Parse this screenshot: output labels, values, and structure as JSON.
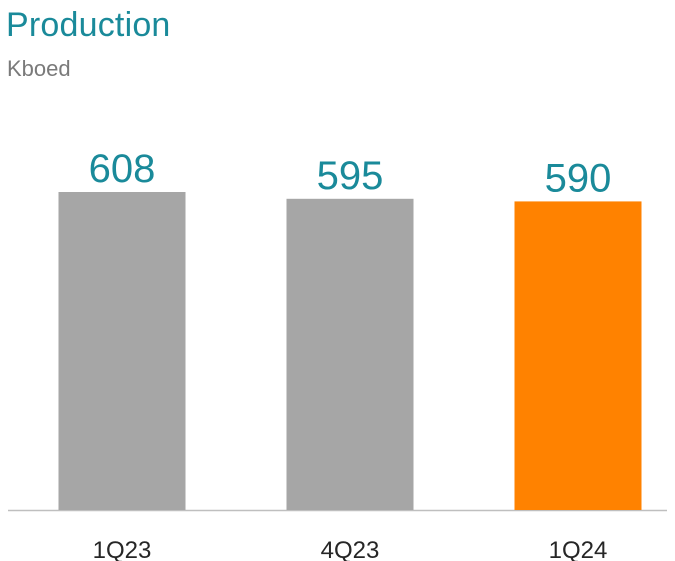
{
  "chart_data": {
    "type": "bar",
    "title": "Production",
    "subtitle": "Kboed",
    "categories": [
      "1Q23",
      "4Q23",
      "1Q24"
    ],
    "values": [
      608,
      595,
      590
    ],
    "colors": [
      "#a6a6a6",
      "#a6a6a6",
      "#ff8200"
    ],
    "label_color": "#1a8a9a",
    "axis_color": "#bfbfbf",
    "grid": false,
    "legend": "none"
  }
}
